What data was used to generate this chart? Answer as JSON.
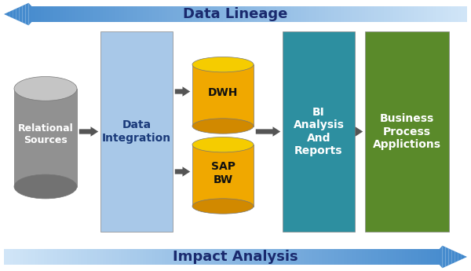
{
  "background_color": "#ffffff",
  "title_lineage": "Data Lineage",
  "title_impact": "Impact Analysis",
  "cylinder_body_gold": "#f0a800",
  "cylinder_top_gold": "#f5cc00",
  "cylinder_body_gray": "#909090",
  "cylinder_top_gray": "#c0c0c0",
  "box_data_integration_color": "#a8c8e8",
  "box_bi_color": "#2d8fa0",
  "box_business_color": "#5a8a2a",
  "label_relational": "Relational\nSources",
  "label_data_integration": "Data\nIntegration",
  "label_dwh": "DWH",
  "label_sap": "SAP\nBW",
  "label_bi": "BI\nAnalysis\nAnd\nReports",
  "label_business": "Business\nProcess\nApplictions",
  "title_lineage_fontsize": 13,
  "title_impact_fontsize": 13,
  "content_fontsize": 10,
  "connector_color": "#555555",
  "arrow_blue_dark": [
    0.25,
    0.53,
    0.8
  ],
  "arrow_blue_light": [
    0.82,
    0.9,
    0.97
  ]
}
